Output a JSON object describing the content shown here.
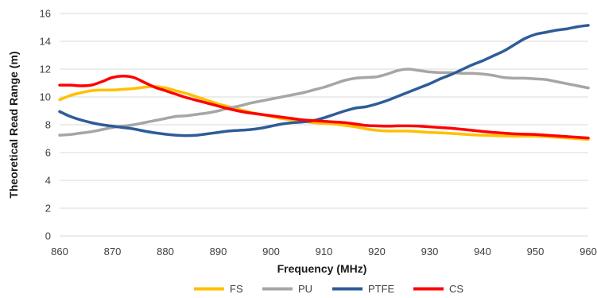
{
  "chart_data": {
    "type": "line",
    "xlabel": "Frequency (MHz)",
    "ylabel": "Theoretical Read Range (m)",
    "xlim": [
      860,
      960
    ],
    "ylim": [
      0,
      16
    ],
    "x_ticks": [
      "860",
      "870",
      "880",
      "890",
      "900",
      "910",
      "920",
      "930",
      "940",
      "950",
      "960"
    ],
    "y_ticks": [
      "0",
      "2",
      "4",
      "6",
      "8",
      "10",
      "12",
      "14",
      "16"
    ],
    "grid": "horizontal",
    "legend_position": "bottom",
    "x": [
      860,
      862,
      864,
      866,
      868,
      870,
      872,
      874,
      876,
      878,
      880,
      882,
      884,
      886,
      888,
      890,
      892,
      894,
      896,
      898,
      900,
      902,
      904,
      906,
      908,
      910,
      912,
      914,
      916,
      918,
      920,
      922,
      924,
      926,
      928,
      930,
      932,
      934,
      936,
      938,
      940,
      942,
      944,
      946,
      948,
      950,
      952,
      954,
      956,
      958,
      960
    ],
    "series": [
      {
        "name": "FS",
        "color": "#FFC000",
        "values": [
          9.8,
          10.1,
          10.3,
          10.45,
          10.5,
          10.5,
          10.55,
          10.6,
          10.7,
          10.75,
          10.65,
          10.45,
          10.25,
          10.0,
          9.75,
          9.5,
          9.3,
          9.1,
          8.9,
          8.75,
          8.6,
          8.45,
          8.35,
          8.25,
          8.15,
          8.1,
          8.05,
          7.95,
          7.85,
          7.7,
          7.6,
          7.55,
          7.55,
          7.55,
          7.5,
          7.45,
          7.42,
          7.38,
          7.33,
          7.28,
          7.25,
          7.22,
          7.2,
          7.18,
          7.18,
          7.18,
          7.15,
          7.1,
          7.05,
          7.0,
          6.95
        ]
      },
      {
        "name": "PU",
        "color": "#A6A6A6",
        "values": [
          7.25,
          7.3,
          7.4,
          7.5,
          7.65,
          7.8,
          7.9,
          8.0,
          8.15,
          8.3,
          8.45,
          8.6,
          8.65,
          8.75,
          8.85,
          9.0,
          9.2,
          9.35,
          9.55,
          9.7,
          9.85,
          10.0,
          10.15,
          10.3,
          10.5,
          10.7,
          10.95,
          11.2,
          11.35,
          11.4,
          11.45,
          11.65,
          11.9,
          12.0,
          11.9,
          11.8,
          11.75,
          11.75,
          11.7,
          11.7,
          11.65,
          11.55,
          11.4,
          11.35,
          11.35,
          11.3,
          11.25,
          11.1,
          10.95,
          10.8,
          10.65
        ]
      },
      {
        "name": "PTFE",
        "color": "#2E5C99",
        "values": [
          8.95,
          8.6,
          8.35,
          8.15,
          8.0,
          7.9,
          7.8,
          7.7,
          7.55,
          7.42,
          7.32,
          7.25,
          7.22,
          7.25,
          7.35,
          7.45,
          7.55,
          7.6,
          7.65,
          7.75,
          7.9,
          8.05,
          8.15,
          8.2,
          8.3,
          8.5,
          8.75,
          9.0,
          9.2,
          9.3,
          9.5,
          9.75,
          10.05,
          10.35,
          10.65,
          10.95,
          11.3,
          11.6,
          11.95,
          12.3,
          12.6,
          12.95,
          13.3,
          13.75,
          14.2,
          14.5,
          14.65,
          14.8,
          14.9,
          15.05,
          15.15
        ]
      },
      {
        "name": "CS",
        "color": "#FF0000",
        "values": [
          10.85,
          10.85,
          10.8,
          10.85,
          11.1,
          11.4,
          11.5,
          11.4,
          11.05,
          10.7,
          10.45,
          10.2,
          9.95,
          9.75,
          9.55,
          9.35,
          9.15,
          8.98,
          8.85,
          8.75,
          8.65,
          8.55,
          8.45,
          8.35,
          8.3,
          8.25,
          8.2,
          8.15,
          8.05,
          7.95,
          7.92,
          7.9,
          7.92,
          7.92,
          7.9,
          7.85,
          7.8,
          7.75,
          7.68,
          7.6,
          7.52,
          7.45,
          7.4,
          7.35,
          7.32,
          7.3,
          7.25,
          7.2,
          7.15,
          7.1,
          7.05
        ]
      }
    ]
  }
}
